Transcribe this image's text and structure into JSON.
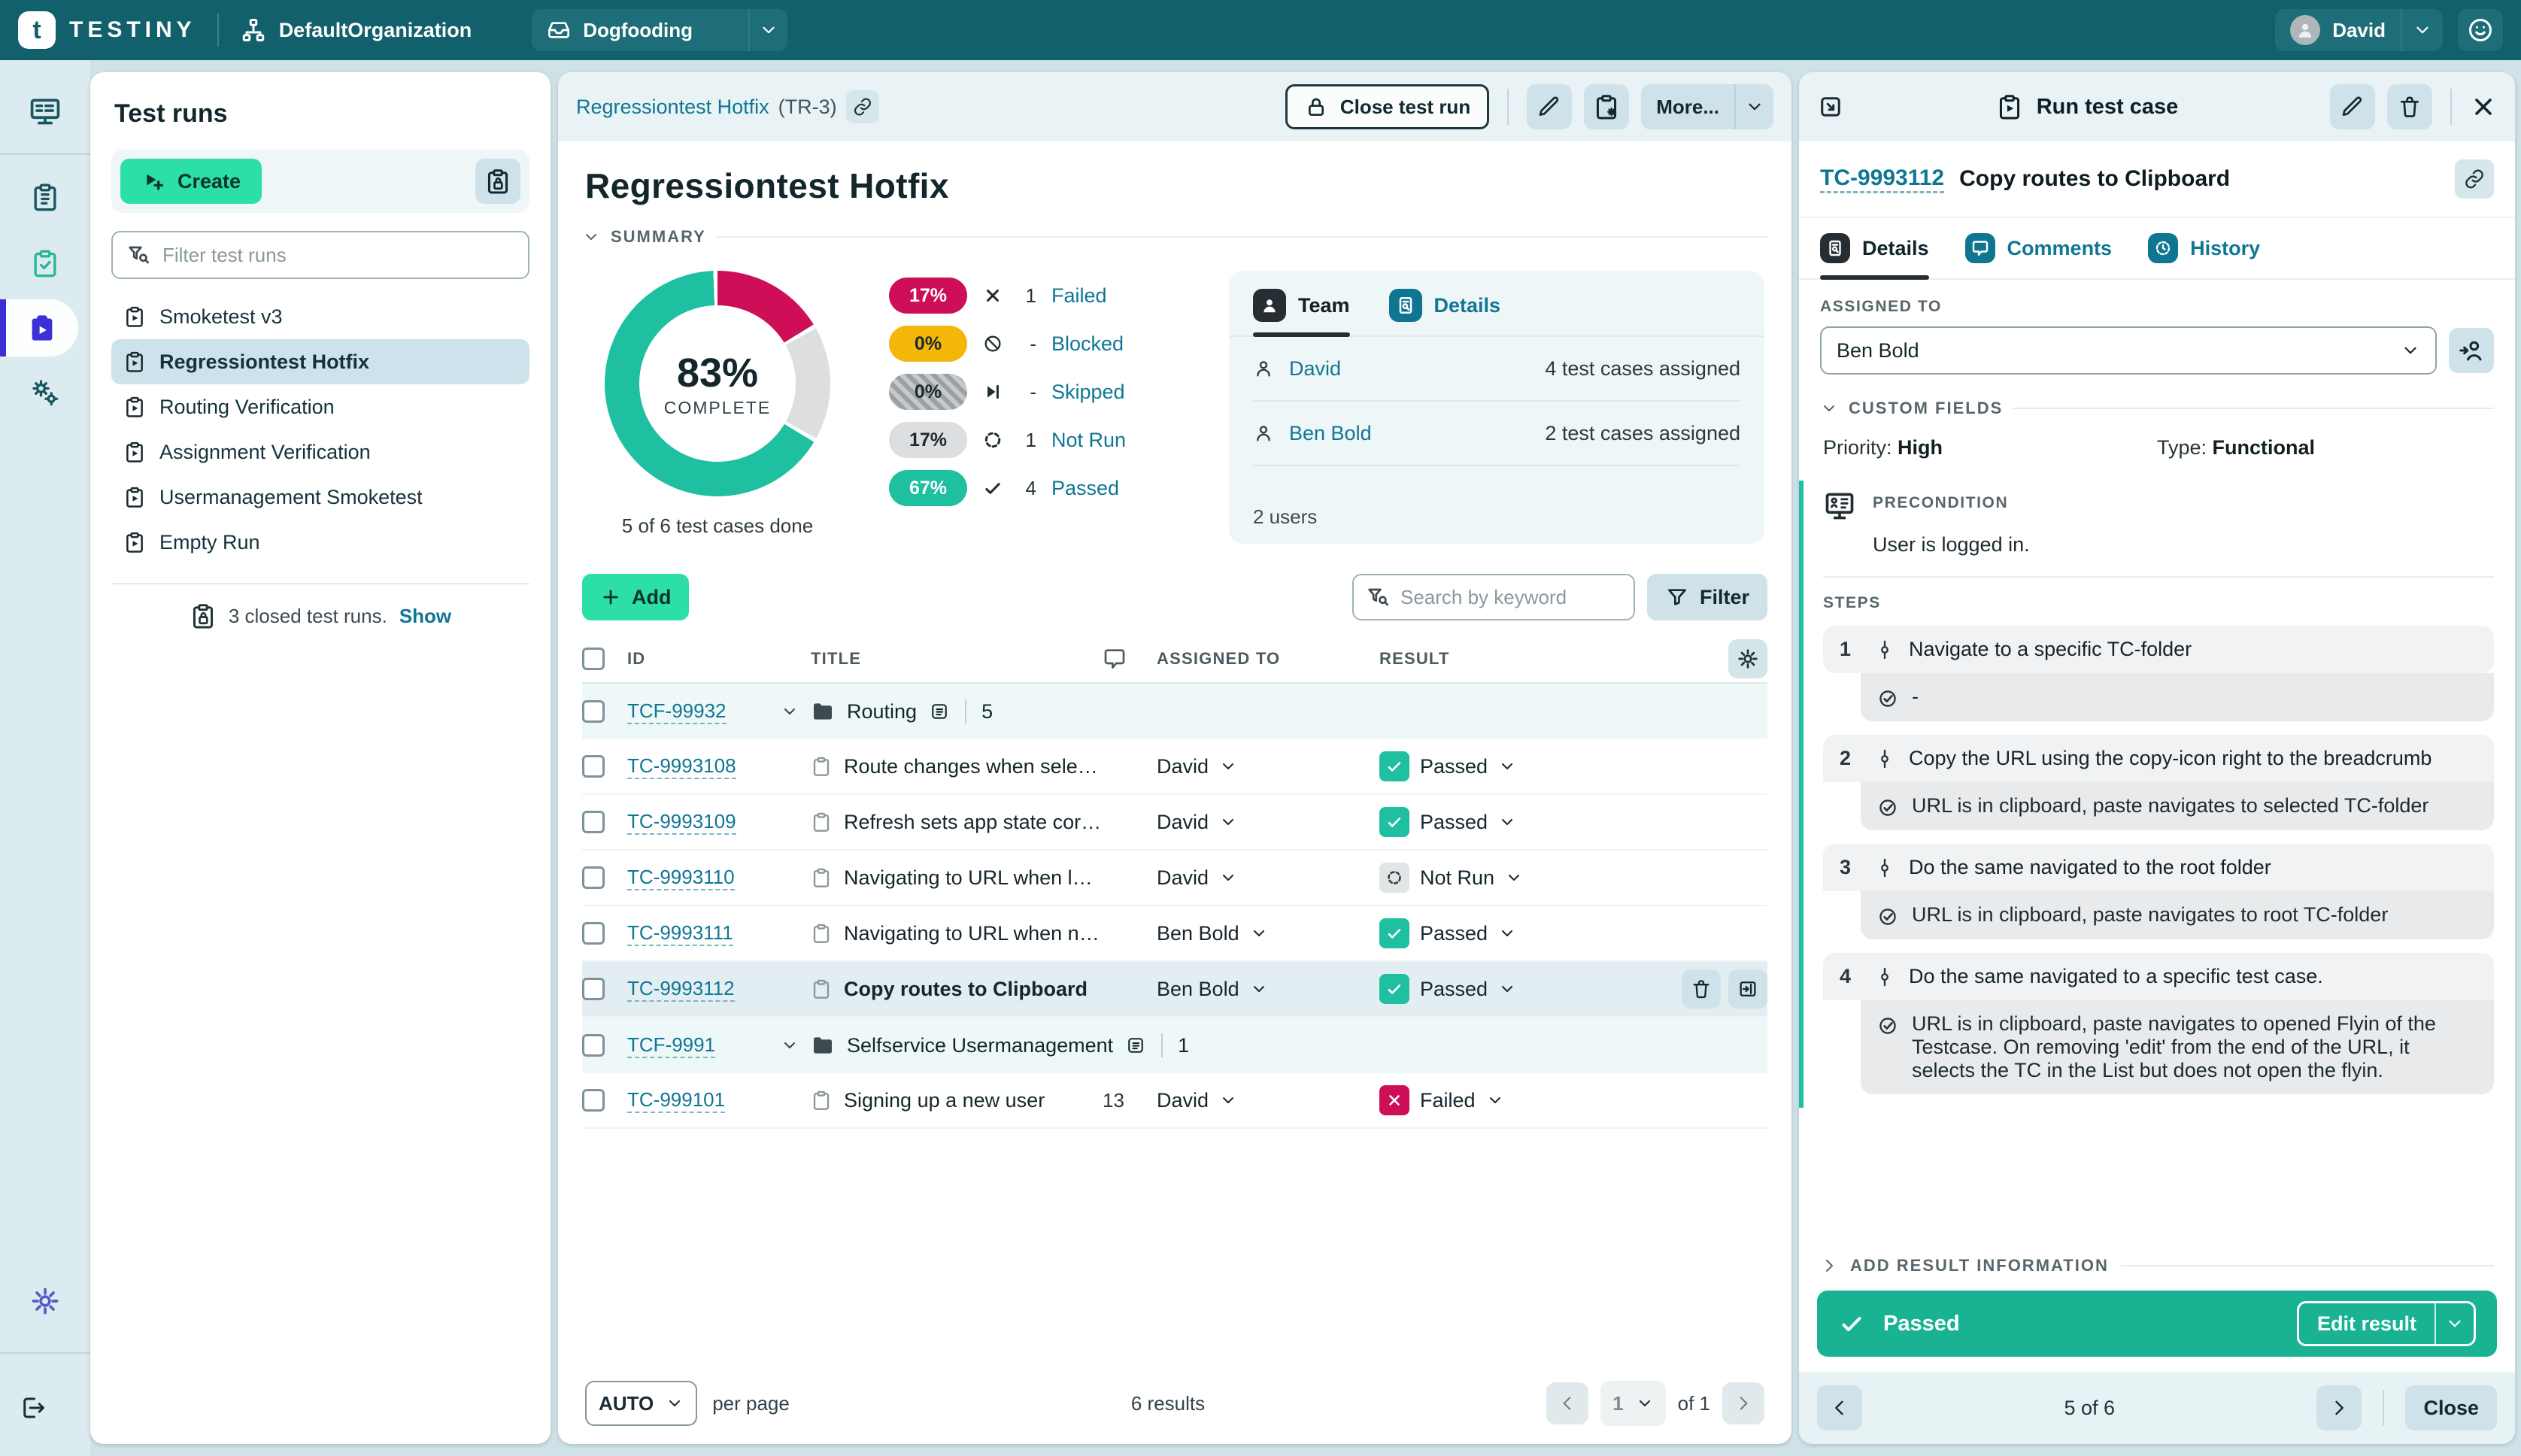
{
  "topbar": {
    "brand": "TESTINY",
    "org": "DefaultOrganization",
    "project": "Dogfooding",
    "user": "David"
  },
  "icons": [
    "org-icon",
    "project-icon",
    "chevron-down-icon",
    "smiley-icon",
    "dashboard-icon",
    "test-cases-icon",
    "test-checklist-icon",
    "test-runs-icon",
    "gears-icon",
    "gear-icon",
    "logout-icon",
    "play-plus-icon",
    "clipboard-lock-icon",
    "filter-search-icon",
    "clipboard-play-icon",
    "link-icon",
    "lock-icon",
    "pencil-icon",
    "clipboard-sparkle-icon",
    "trash-icon",
    "close-icon",
    "check-icon",
    "x-icon",
    "ban-icon",
    "skip-icon",
    "notrun-icon",
    "user-icon",
    "user-arrow-icon",
    "doc-search-icon",
    "message-icon",
    "history-icon",
    "plus-icon",
    "funnel-icon",
    "folder-icon",
    "list-icon",
    "clipboard-icon",
    "open-flyin-icon",
    "expand-icon",
    "precondition-icon",
    "commit-icon",
    "check-circle-icon",
    "gear-settings-icon",
    "chevron-left-icon",
    "chevron-right-icon"
  ],
  "sidebar": {
    "title": "Test runs",
    "create_label": "Create",
    "filter_placeholder": "Filter test runs",
    "items": [
      {
        "label": "Smoketest v3",
        "selected": false
      },
      {
        "label": "Regressiontest Hotfix",
        "selected": true
      },
      {
        "label": "Routing Verification",
        "selected": false
      },
      {
        "label": "Assignment Verification",
        "selected": false
      },
      {
        "label": "Usermanagement Smoketest",
        "selected": false
      },
      {
        "label": "Empty Run",
        "selected": false
      }
    ],
    "closed_runs_note": "3 closed test runs.",
    "show_label": "Show"
  },
  "main": {
    "breadcrumb": {
      "name": "Regressiontest Hotfix",
      "suffix": "(TR-3)"
    },
    "actions": {
      "close_run": "Close test run",
      "more": "More..."
    },
    "title": "Regressiontest Hotfix",
    "summary_label": "SUMMARY",
    "chart_data": {
      "type": "donut",
      "title": "Test run completion",
      "center_value": "83%",
      "center_label": "COMPLETE",
      "caption": "5 of 6 test cases done",
      "legend_position": "right",
      "segments": [
        {
          "label": "Failed",
          "pct": 17,
          "count": "1",
          "color": "#ce0e56",
          "icon": "x-icon"
        },
        {
          "label": "Blocked",
          "pct": 0,
          "count": "-",
          "color": "#f4b608",
          "icon": "ban-icon"
        },
        {
          "label": "Skipped",
          "pct": 0,
          "count": "-",
          "color": "hatch",
          "icon": "skip-icon"
        },
        {
          "label": "Not Run",
          "pct": 17,
          "count": "1",
          "color": "#dcdee0",
          "icon": "notrun-icon"
        },
        {
          "label": "Passed",
          "pct": 67,
          "count": "4",
          "color": "#1fbfa2",
          "icon": "check-icon"
        }
      ]
    },
    "team": {
      "tab_team": "Team",
      "tab_details": "Details",
      "rows": [
        {
          "name": "David",
          "info": "4 test cases assigned"
        },
        {
          "name": "Ben Bold",
          "info": "2 test cases assigned"
        }
      ],
      "footer": "2 users"
    },
    "toolbar": {
      "add_label": "Add",
      "search_placeholder": "Search by keyword",
      "filter_label": "Filter"
    },
    "table": {
      "headers": {
        "id": "ID",
        "title": "TITLE",
        "assigned": "ASSIGNED TO",
        "result": "RESULT"
      },
      "rows": [
        {
          "type": "folder",
          "id": "TCF-99932",
          "name": "Routing",
          "count": "5"
        },
        {
          "type": "tc",
          "id": "TC-9993108",
          "title": "Route changes when selectin...",
          "assignee": "David",
          "result": "Passed"
        },
        {
          "type": "tc",
          "id": "TC-9993109",
          "title": "Refresh sets app state corre...",
          "assignee": "David",
          "result": "Passed"
        },
        {
          "type": "tc",
          "id": "TC-9993110",
          "title": "Navigating to URL when logg...",
          "assignee": "David",
          "result": "Not Run"
        },
        {
          "type": "tc",
          "id": "TC-9993111",
          "title": "Navigating to URL when not l...",
          "assignee": "Ben Bold",
          "result": "Passed"
        },
        {
          "type": "tc",
          "id": "TC-9993112",
          "title": "Copy routes to Clipboard",
          "assignee": "Ben Bold",
          "result": "Passed",
          "selected": true,
          "row_actions": [
            "trash-icon",
            "open-flyin-icon"
          ]
        },
        {
          "type": "folder",
          "id": "TCF-9991",
          "name": "Selfservice Usermanagement",
          "count": "1"
        },
        {
          "type": "tc",
          "id": "TC-999101",
          "title": "Signing up a new user",
          "comments": "13",
          "assignee": "David",
          "result": "Failed"
        }
      ]
    },
    "pagination": {
      "page_size": "AUTO",
      "per_page_label": "per page",
      "results_label": "6 results",
      "page": "1",
      "of_label": "of 1"
    }
  },
  "panel": {
    "header_title": "Run test case",
    "tc_id": "TC-9993112",
    "tc_title": "Copy routes to Clipboard",
    "tabs": {
      "details": "Details",
      "comments": "Comments",
      "history": "History"
    },
    "assigned_to_label": "ASSIGNED TO",
    "assignee": "Ben Bold",
    "custom_fields_label": "CUSTOM FIELDS",
    "fields": [
      {
        "label": "Priority:",
        "value": "High"
      },
      {
        "label": "Type:",
        "value": "Functional"
      }
    ],
    "precondition_label": "PRECONDITION",
    "precondition_text": "User is logged in.",
    "steps_label": "STEPS",
    "steps": [
      {
        "n": "1",
        "text": "Navigate to a specific TC-folder",
        "expected": "-"
      },
      {
        "n": "2",
        "text": "Copy the URL using the copy-icon right to the breadcrumb",
        "expected": "URL is in clipboard, paste navigates to selected TC-folder"
      },
      {
        "n": "3",
        "text": "Do the same navigated to the root folder",
        "expected": "URL is in clipboard, paste navigates to root TC-folder"
      },
      {
        "n": "4",
        "text": "Do the same navigated to a specific test case.",
        "expected": "URL is in clipboard, paste navigates to opened Flyin of the Testcase. On removing 'edit' from the end of the URL, it selects the TC in the List but does not open the flyin."
      }
    ],
    "add_result_label": "ADD RESULT INFORMATION",
    "result_bar": {
      "status": "Passed",
      "edit_label": "Edit result"
    },
    "footer": {
      "position": "5 of 6",
      "close_label": "Close"
    }
  }
}
